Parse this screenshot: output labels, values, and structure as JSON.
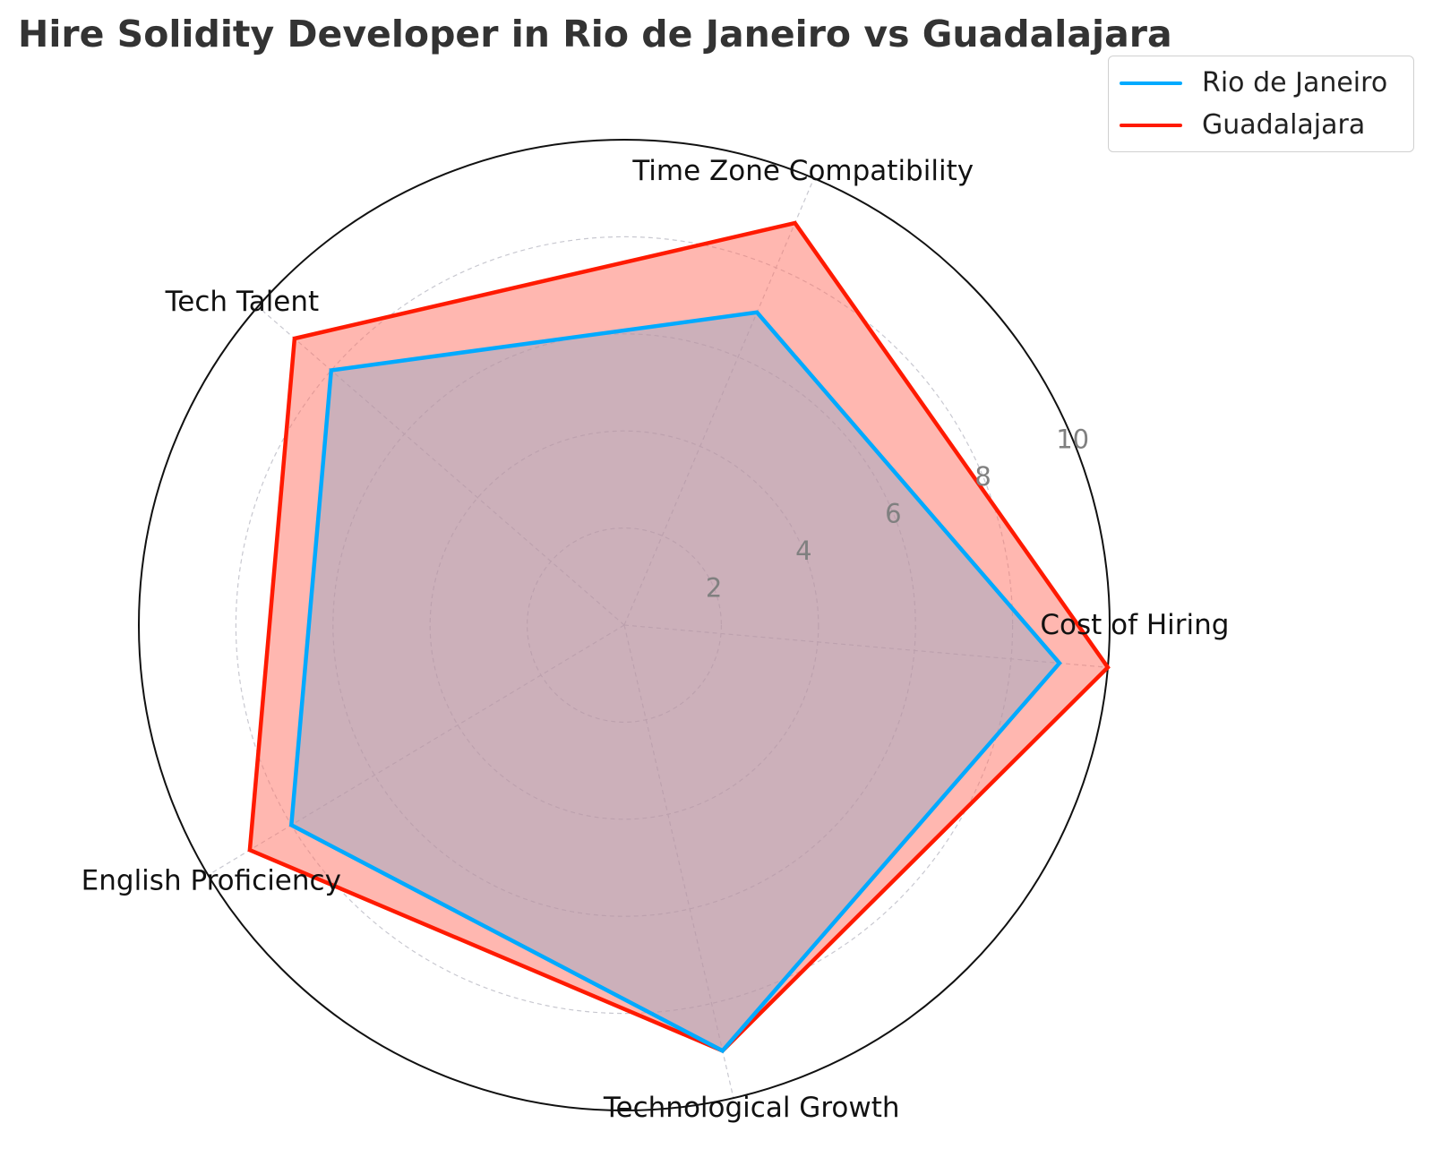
{
  "chart_data": {
    "type": "radar",
    "title": "Hire Solidity Developer in Rio de Janeiro vs Guadalajara",
    "categories": [
      "Cost of Hiring",
      "Time Zone Compatibility",
      "Tech Talent",
      "English Proficiency",
      "Technological Growth"
    ],
    "rlim": [
      0,
      10
    ],
    "rticks": [
      "2",
      "4",
      "6",
      "8",
      "10"
    ],
    "grid": true,
    "legend": "top-right",
    "series": [
      {
        "name": "Rio de Janeiro",
        "values": [
          9,
          7,
          8,
          8,
          9
        ],
        "color": "#00aaff",
        "fill": false
      },
      {
        "name": "Guadalajara",
        "values": [
          10,
          9,
          9,
          9,
          9
        ],
        "color": "#ff1a00",
        "fill": true,
        "fill_color": "#ff6f61"
      }
    ]
  }
}
